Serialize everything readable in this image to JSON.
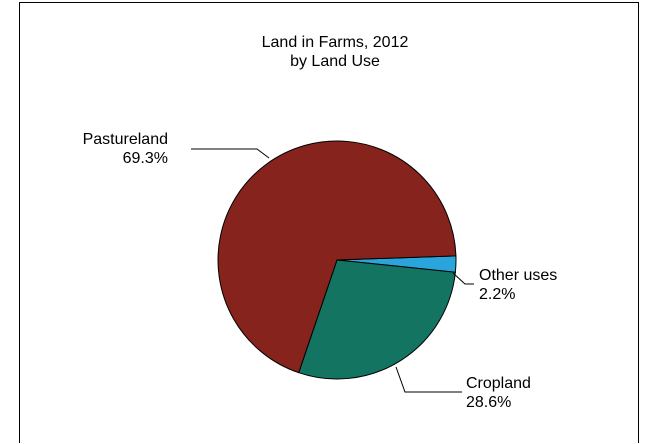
{
  "chart_data": {
    "type": "pie",
    "title": [
      "Land in Farms, 2012",
      "by Land Use"
    ],
    "slices": [
      {
        "label": "Other uses",
        "value": 2.2,
        "value_label": "2.2%",
        "color": "#2AA5DC"
      },
      {
        "label": "Cropland",
        "value": 28.6,
        "value_label": "28.6%",
        "color": "#137461"
      },
      {
        "label": "Pastureland",
        "value": 69.3,
        "value_label": "69.3%",
        "color": "#86231D"
      }
    ],
    "start": "3 o'clock, clockwise",
    "legend": "none"
  }
}
